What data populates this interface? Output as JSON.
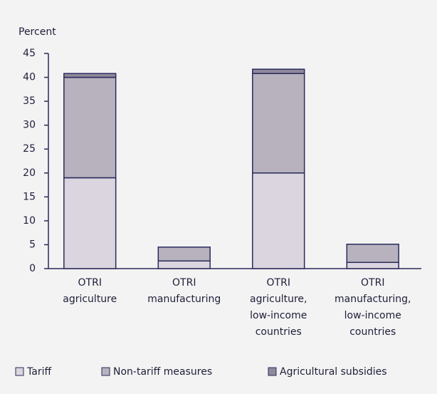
{
  "chart_data": {
    "type": "stacked_bar",
    "ylabel": "Percent",
    "categories": [
      [
        "OTRI",
        "agriculture"
      ],
      [
        "OTRI",
        "manufacturing"
      ],
      [
        "OTRI",
        "agriculture,",
        "low-income",
        "countries"
      ],
      [
        "OTRI",
        "manufacturing,",
        "low-income",
        "countries"
      ]
    ],
    "series": [
      {
        "name": "Tariff",
        "color": "#dad5de",
        "values": [
          19,
          1.6,
          20,
          1.3
        ]
      },
      {
        "name": "Non-tariff measures",
        "color": "#b7b2bd",
        "values": [
          21,
          2.9,
          20.8,
          3.8
        ]
      },
      {
        "name": "Agricultural subsidies",
        "color": "#8f8a9b",
        "values": [
          0.8,
          0,
          0.9,
          0
        ]
      }
    ],
    "ylim": [
      0,
      45
    ],
    "yticks": [
      0,
      5,
      10,
      15,
      20,
      25,
      30,
      35,
      40,
      45
    ],
    "grid": false
  }
}
